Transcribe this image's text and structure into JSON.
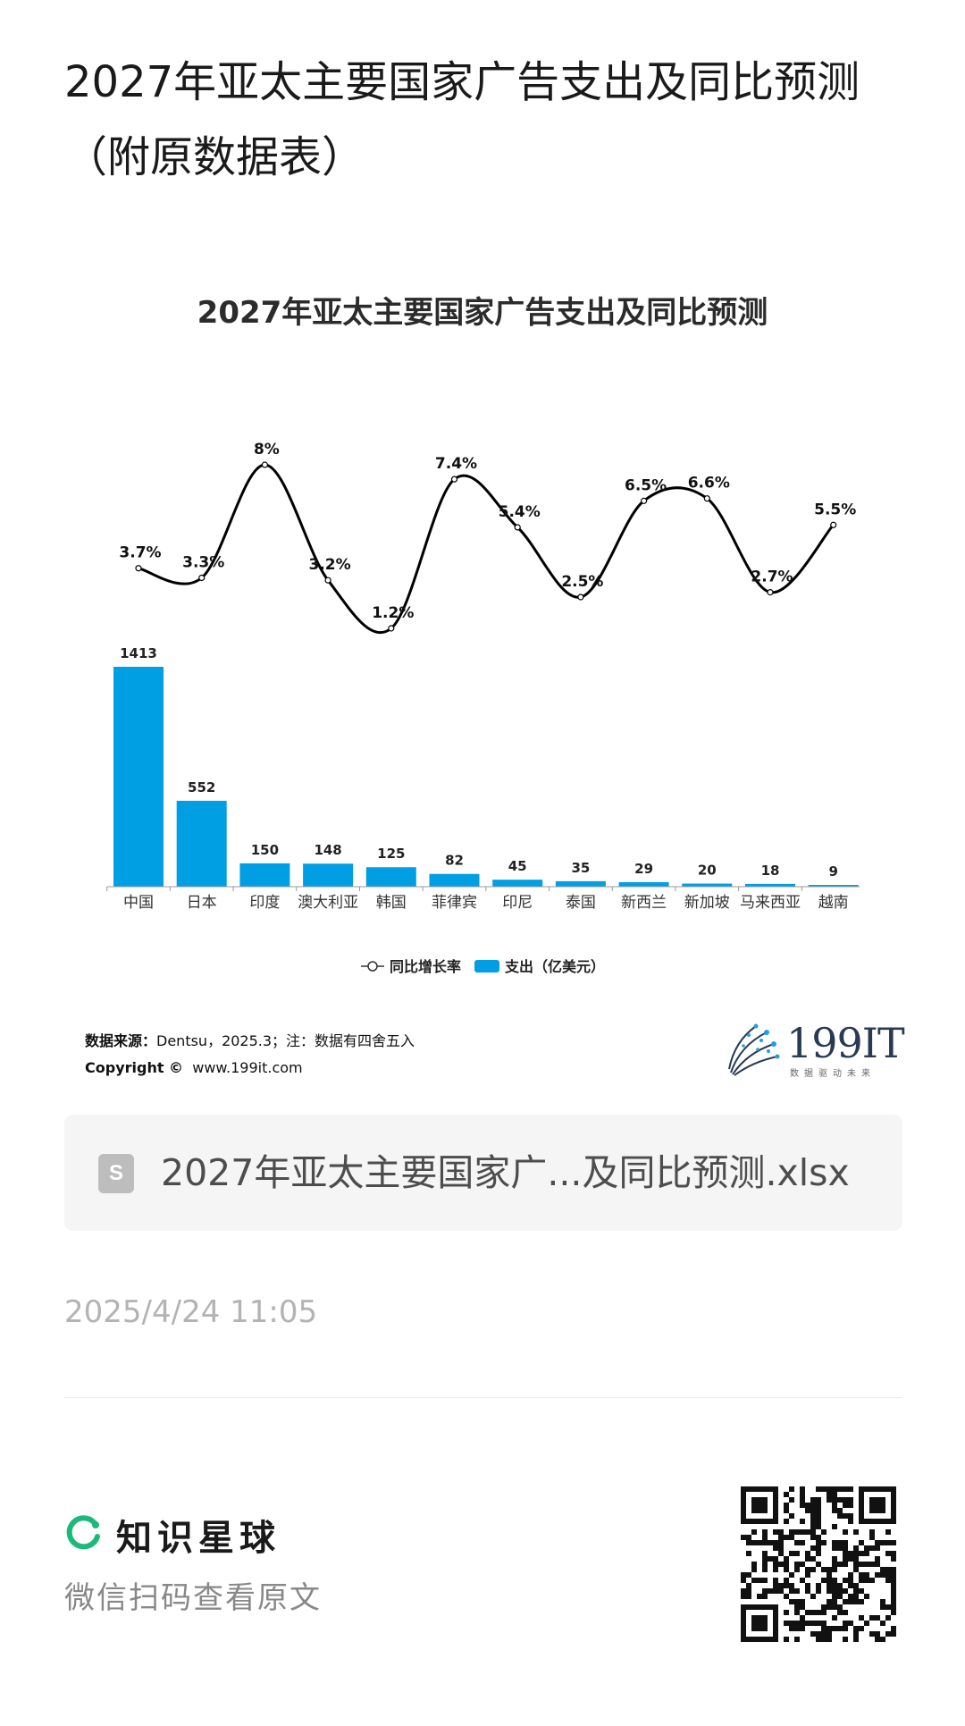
{
  "page": {
    "title": "2027年亚太主要国家广告支出及同比预测（附原数据表）"
  },
  "chart_data": {
    "type": "bar",
    "title": "2027年亚太主要国家广告支出及同比预测",
    "categories": [
      "中国",
      "日本",
      "印度",
      "澳大利亚",
      "韩国",
      "菲律宾",
      "印尼",
      "泰国",
      "新西兰",
      "新加坡",
      "马来西亚",
      "越南"
    ],
    "series": [
      {
        "name": "支出（亿美元）",
        "kind": "bar",
        "values": [
          1413,
          552,
          150,
          148,
          125,
          82,
          45,
          35,
          29,
          20,
          18,
          9
        ],
        "labels": [
          "1413",
          "552",
          "150",
          "148",
          "125",
          "82",
          "45",
          "35",
          "29",
          "20",
          "18",
          "9"
        ],
        "color": "#009fe3"
      },
      {
        "name": "同比增长率",
        "kind": "line",
        "values": [
          3.7,
          3.3,
          8,
          3.2,
          1.2,
          7.4,
          5.4,
          2.5,
          6.5,
          6.6,
          2.7,
          5.5
        ],
        "labels": [
          "3.7%",
          "3.3%",
          "8%",
          "3.2%",
          "1.2%",
          "7.4%",
          "5.4%",
          "2.5%",
          "6.5%",
          "6.6%",
          "2.7%",
          "5.5%"
        ],
        "color": "#000000"
      }
    ],
    "legend_position": "bottom",
    "grid": false
  },
  "source": {
    "label": "数据来源：",
    "text": "Dentsu，2025.3；注：数据有四舍五入",
    "copyright_label": "Copyright ©",
    "copyright_text": "www.199it.com"
  },
  "logo": {
    "text": "199IT",
    "sub": "数据驱动未来"
  },
  "file": {
    "icon_letter": "S",
    "name": "2027年亚太主要国家广...及同比预测.xlsx"
  },
  "timestamp": "2025/4/24 11:05",
  "footer": {
    "brand": "知识星球",
    "sub": "微信扫码查看原文"
  },
  "colors": {
    "accent": "#009fe3",
    "brand_green": "#1db97a"
  }
}
